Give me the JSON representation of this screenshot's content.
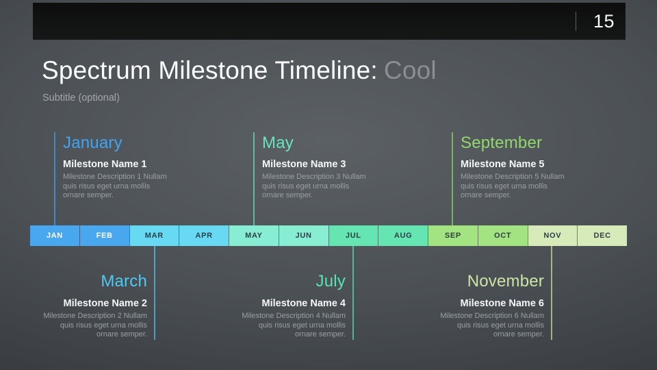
{
  "slide": {
    "number": "15",
    "title": "Spectrum Milestone Timeline:",
    "title_accent": "Cool",
    "subtitle": "Subtitle (optional)"
  },
  "colors": {
    "title_main": "#fbfcfd",
    "title_accent": "#8b8f93",
    "header_bar": "#111212",
    "background_center": "#5b6065",
    "background_edge": "#282b2f",
    "milestone_name_text": "#f5f7f8",
    "milestone_description_text": "#9aa0a4"
  },
  "timeline": {
    "months": [
      {
        "label": "JAN",
        "color": "#48a7ef",
        "text_color": "#ffffff"
      },
      {
        "label": "FEB",
        "color": "#48a7ef",
        "text_color": "#ffffff"
      },
      {
        "label": "MAR",
        "color": "#68d9f2",
        "text_color": "#2f3d46"
      },
      {
        "label": "APR",
        "color": "#68d9f2",
        "text_color": "#2f3d46"
      },
      {
        "label": "MAY",
        "color": "#87eed3",
        "text_color": "#2f3d46"
      },
      {
        "label": "JUN",
        "color": "#87eed3",
        "text_color": "#2f3d46"
      },
      {
        "label": "JUL",
        "color": "#64e5b1",
        "text_color": "#2f3d46"
      },
      {
        "label": "AUG",
        "color": "#64e5b1",
        "text_color": "#2f3d46"
      },
      {
        "label": "SEP",
        "color": "#a3e381",
        "text_color": "#2f3d46"
      },
      {
        "label": "OCT",
        "color": "#a3e381",
        "text_color": "#2f3d46"
      },
      {
        "label": "NOV",
        "color": "#d7eab9",
        "text_color": "#2f3d46"
      },
      {
        "label": "DEC",
        "color": "#d7eab9",
        "text_color": "#2f3d46"
      }
    ]
  },
  "milestones": [
    {
      "month": "January",
      "position": "above",
      "accent": "#41a4f1",
      "name": "Milestone Name 1",
      "description": "Milestone Description 1 Nullam quis risus eget urna mollis ornare semper."
    },
    {
      "month": "March",
      "position": "below",
      "accent": "#4fc9f2",
      "name": "Milestone Name 2",
      "description": "Milestone Description 2 Nullam quis risus eget urna mollis ornare semper."
    },
    {
      "month": "May",
      "position": "above",
      "accent": "#6be2c3",
      "name": "Milestone Name 3",
      "description": "Milestone Description 3 Nullam quis risus eget urna mollis ornare semper."
    },
    {
      "month": "July",
      "position": "below",
      "accent": "#58e3b2",
      "name": "Milestone Name 4",
      "description": "Milestone Description 4 Nullam quis risus eget urna mollis ornare semper."
    },
    {
      "month": "September",
      "position": "above",
      "accent": "#92d66d",
      "name": "Milestone Name 5",
      "description": "Milestone Description 5 Nullam quis risus eget urna mollis ornare semper."
    },
    {
      "month": "November",
      "position": "below",
      "accent": "#cce4a4",
      "name": "Milestone Name 6",
      "description": "Milestone Description 6 Nullam quis risus eget urna mollis ornare semper."
    }
  ]
}
